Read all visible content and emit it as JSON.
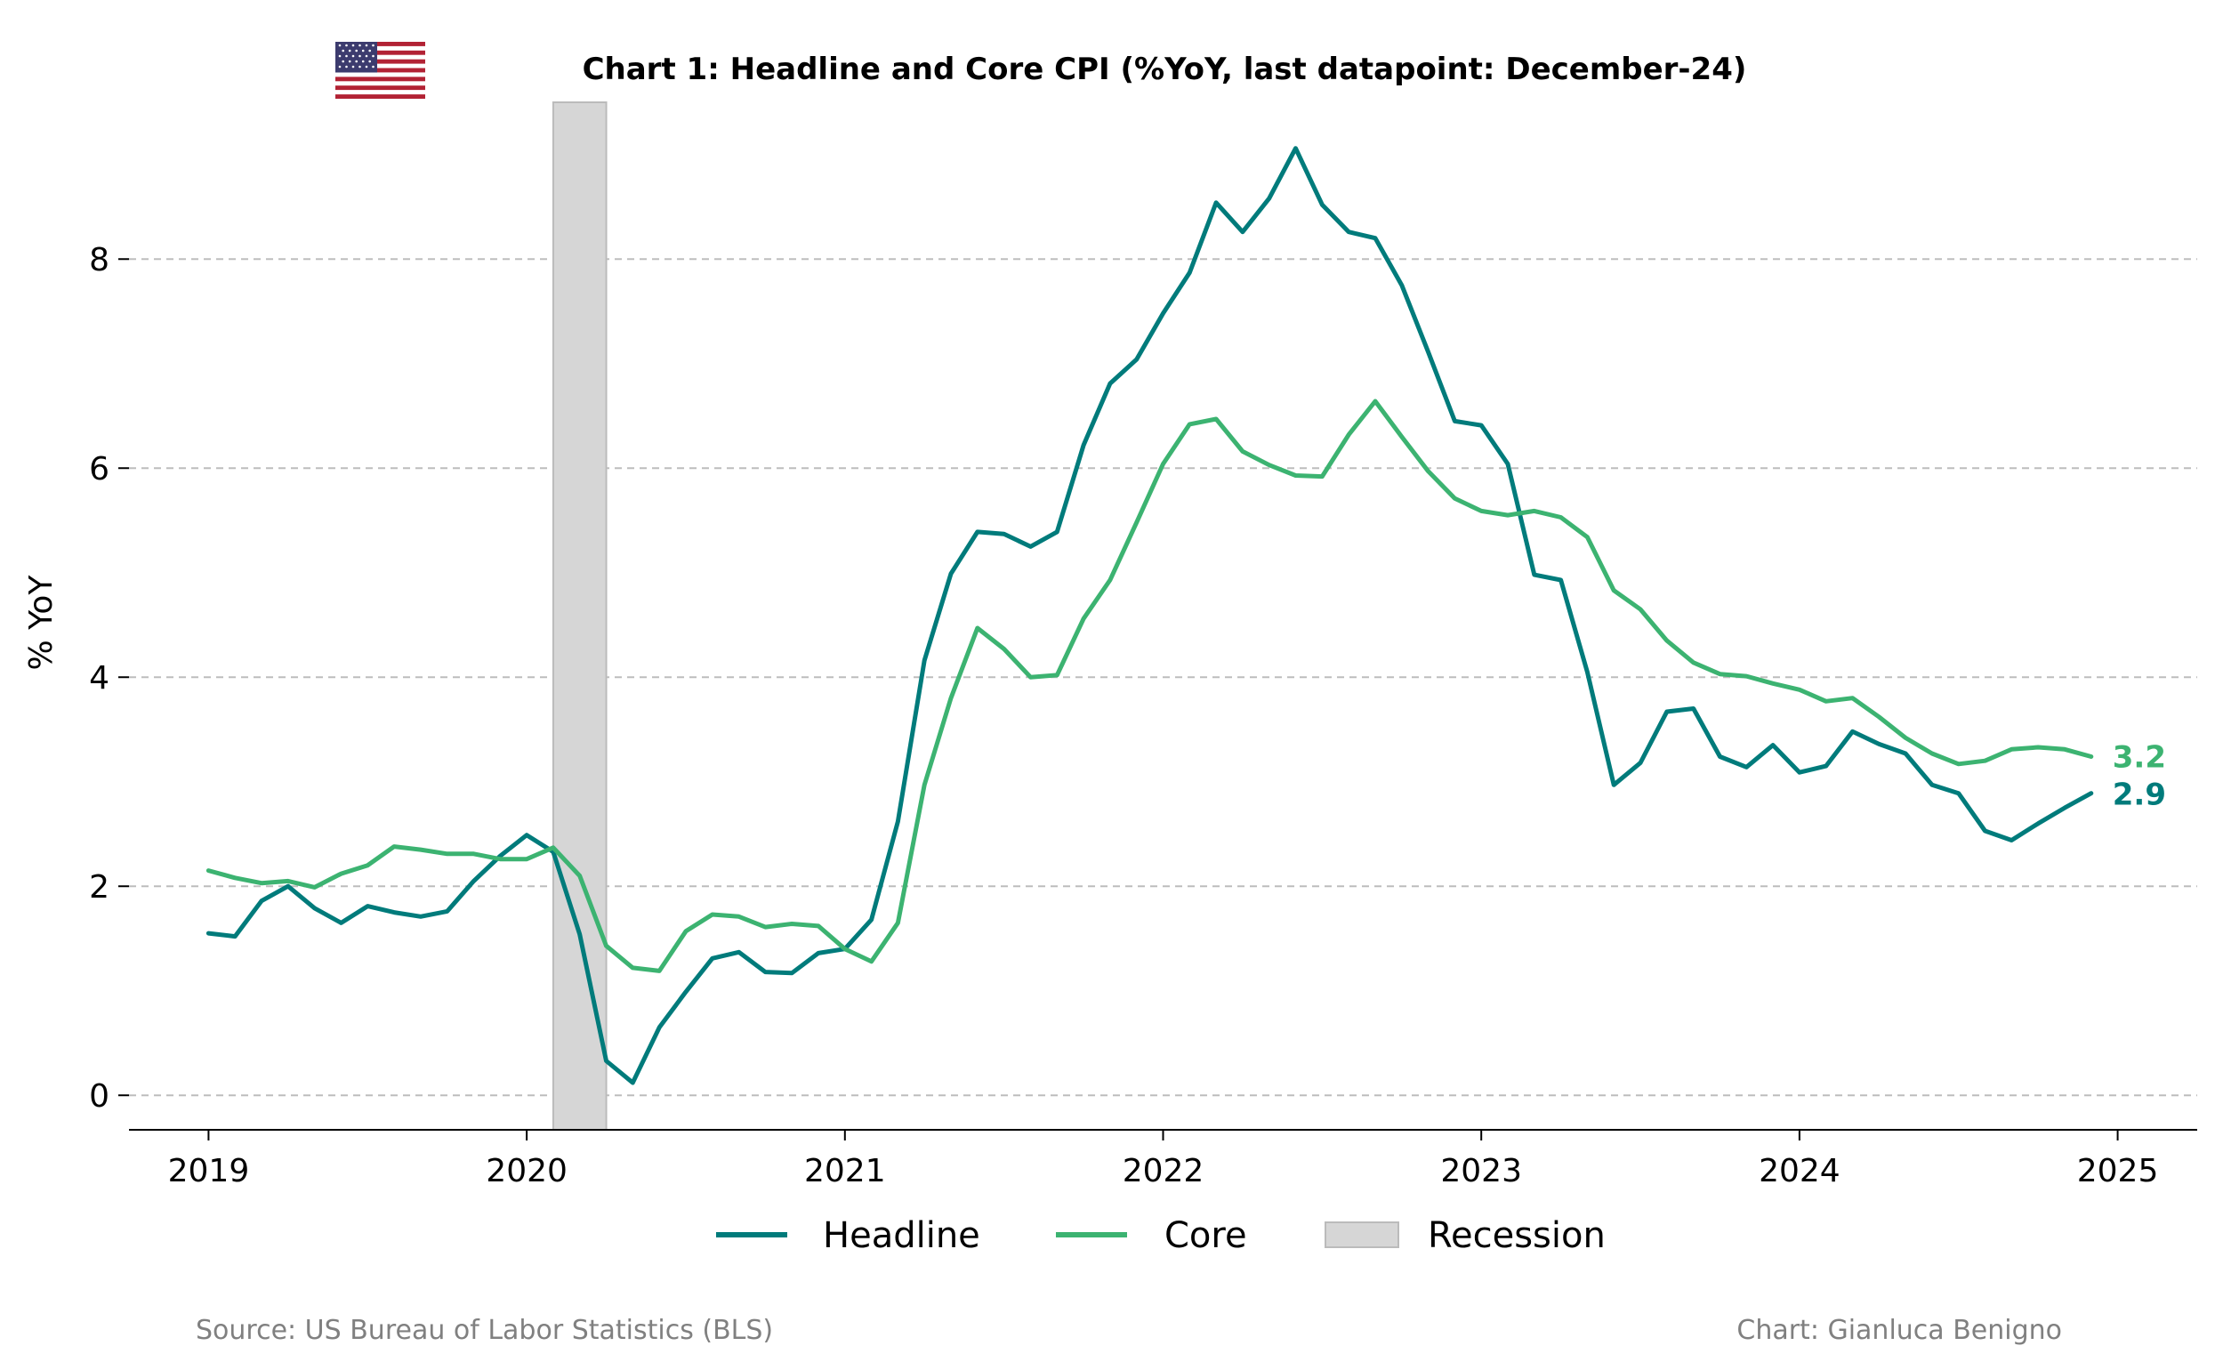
{
  "chart_data": {
    "type": "line",
    "title": "Chart 1: Headline and Core CPI (%YoY, last datapoint: December-24)",
    "xlabel": "",
    "ylabel": "% YoY",
    "x_ticks": [
      "2019",
      "2020",
      "2021",
      "2022",
      "2023",
      "2024",
      "2025"
    ],
    "y_ticks": [
      "0",
      "2",
      "4",
      "6",
      "8"
    ],
    "xlim": [
      "2018-10",
      "2025-04"
    ],
    "ylim": [
      -0.33,
      9.5
    ],
    "grid": "horizontal dashed",
    "legend_position": "bottom-center",
    "start_month": "2019-01",
    "recession": {
      "label": "Recession",
      "start": "2020-02",
      "end": "2020-04",
      "color": "#d6d6d6"
    },
    "series": [
      {
        "name": "Headline",
        "color": "#007b7b",
        "end_label": "2.9",
        "values": [
          1.55,
          1.52,
          1.86,
          2.0,
          1.79,
          1.65,
          1.81,
          1.75,
          1.71,
          1.76,
          2.05,
          2.29,
          2.49,
          2.33,
          1.54,
          0.33,
          0.12,
          0.65,
          0.99,
          1.31,
          1.37,
          1.18,
          1.17,
          1.36,
          1.4,
          1.68,
          2.62,
          4.16,
          4.99,
          5.39,
          5.37,
          5.25,
          5.39,
          6.22,
          6.81,
          7.04,
          7.48,
          7.87,
          8.54,
          8.26,
          8.58,
          9.06,
          8.52,
          8.26,
          8.2,
          7.75,
          7.11,
          6.45,
          6.41,
          6.04,
          4.98,
          4.93,
          4.05,
          2.97,
          3.18,
          3.67,
          3.7,
          3.24,
          3.14,
          3.35,
          3.09,
          3.15,
          3.48,
          3.36,
          3.27,
          2.97,
          2.89,
          2.53,
          2.44,
          2.6,
          2.75,
          2.89
        ]
      },
      {
        "name": "Core",
        "color": "#3cb371",
        "end_label": "3.2",
        "values": [
          2.15,
          2.08,
          2.03,
          2.05,
          1.99,
          2.12,
          2.2,
          2.38,
          2.35,
          2.31,
          2.31,
          2.26,
          2.26,
          2.37,
          2.1,
          1.43,
          1.22,
          1.19,
          1.57,
          1.73,
          1.71,
          1.61,
          1.64,
          1.62,
          1.4,
          1.28,
          1.65,
          2.97,
          3.8,
          4.47,
          4.27,
          4.0,
          4.02,
          4.56,
          4.93,
          5.48,
          6.04,
          6.42,
          6.47,
          6.16,
          6.03,
          5.93,
          5.92,
          6.32,
          6.64,
          6.3,
          5.97,
          5.71,
          5.59,
          5.55,
          5.59,
          5.53,
          5.34,
          4.83,
          4.65,
          4.35,
          4.14,
          4.03,
          4.01,
          3.94,
          3.88,
          3.77,
          3.8,
          3.62,
          3.42,
          3.27,
          3.17,
          3.2,
          3.31,
          3.33,
          3.31,
          3.24
        ]
      }
    ]
  },
  "legend": {
    "items": [
      {
        "label": "Headline",
        "kind": "line",
        "color": "#007b7b"
      },
      {
        "label": "Core",
        "kind": "line",
        "color": "#3cb371"
      },
      {
        "label": "Recession",
        "kind": "patch",
        "color": "#d6d6d6"
      }
    ]
  },
  "footer": {
    "source": "Source: US Bureau of Labor Statistics (BLS)",
    "credit": "Chart: Gianluca Benigno"
  },
  "flag": {
    "icon": "us-flag-icon"
  }
}
